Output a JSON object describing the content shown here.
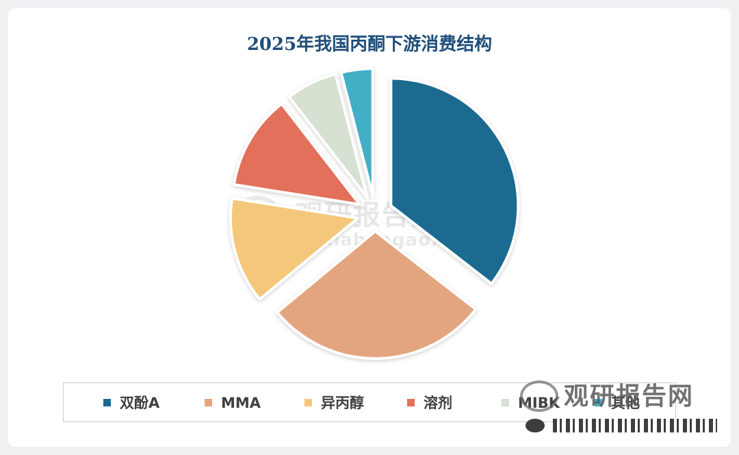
{
  "chart_data": {
    "type": "pie",
    "title": "2025年我国丙酮下游消费结构",
    "legend_position": "bottom",
    "slices": [
      {
        "label": "双酚A",
        "value": 35.5,
        "color": "#1b6a8f"
      },
      {
        "label": "MMA",
        "value": 28.5,
        "color": "#e3a57f"
      },
      {
        "label": "异丙醇",
        "value": 13.5,
        "color": "#f5c77a"
      },
      {
        "label": "溶剂",
        "value": 12.0,
        "color": "#e2705a"
      },
      {
        "label": "MIBK",
        "value": 6.5,
        "color": "#d6e1d2"
      },
      {
        "label": "其他",
        "value": 4.0,
        "color": "#43afc6"
      }
    ]
  },
  "watermark": {
    "text": "观研报告网",
    "url": "chinabaogao.com"
  },
  "bottom_watermark": {
    "text": "观研报告网"
  }
}
